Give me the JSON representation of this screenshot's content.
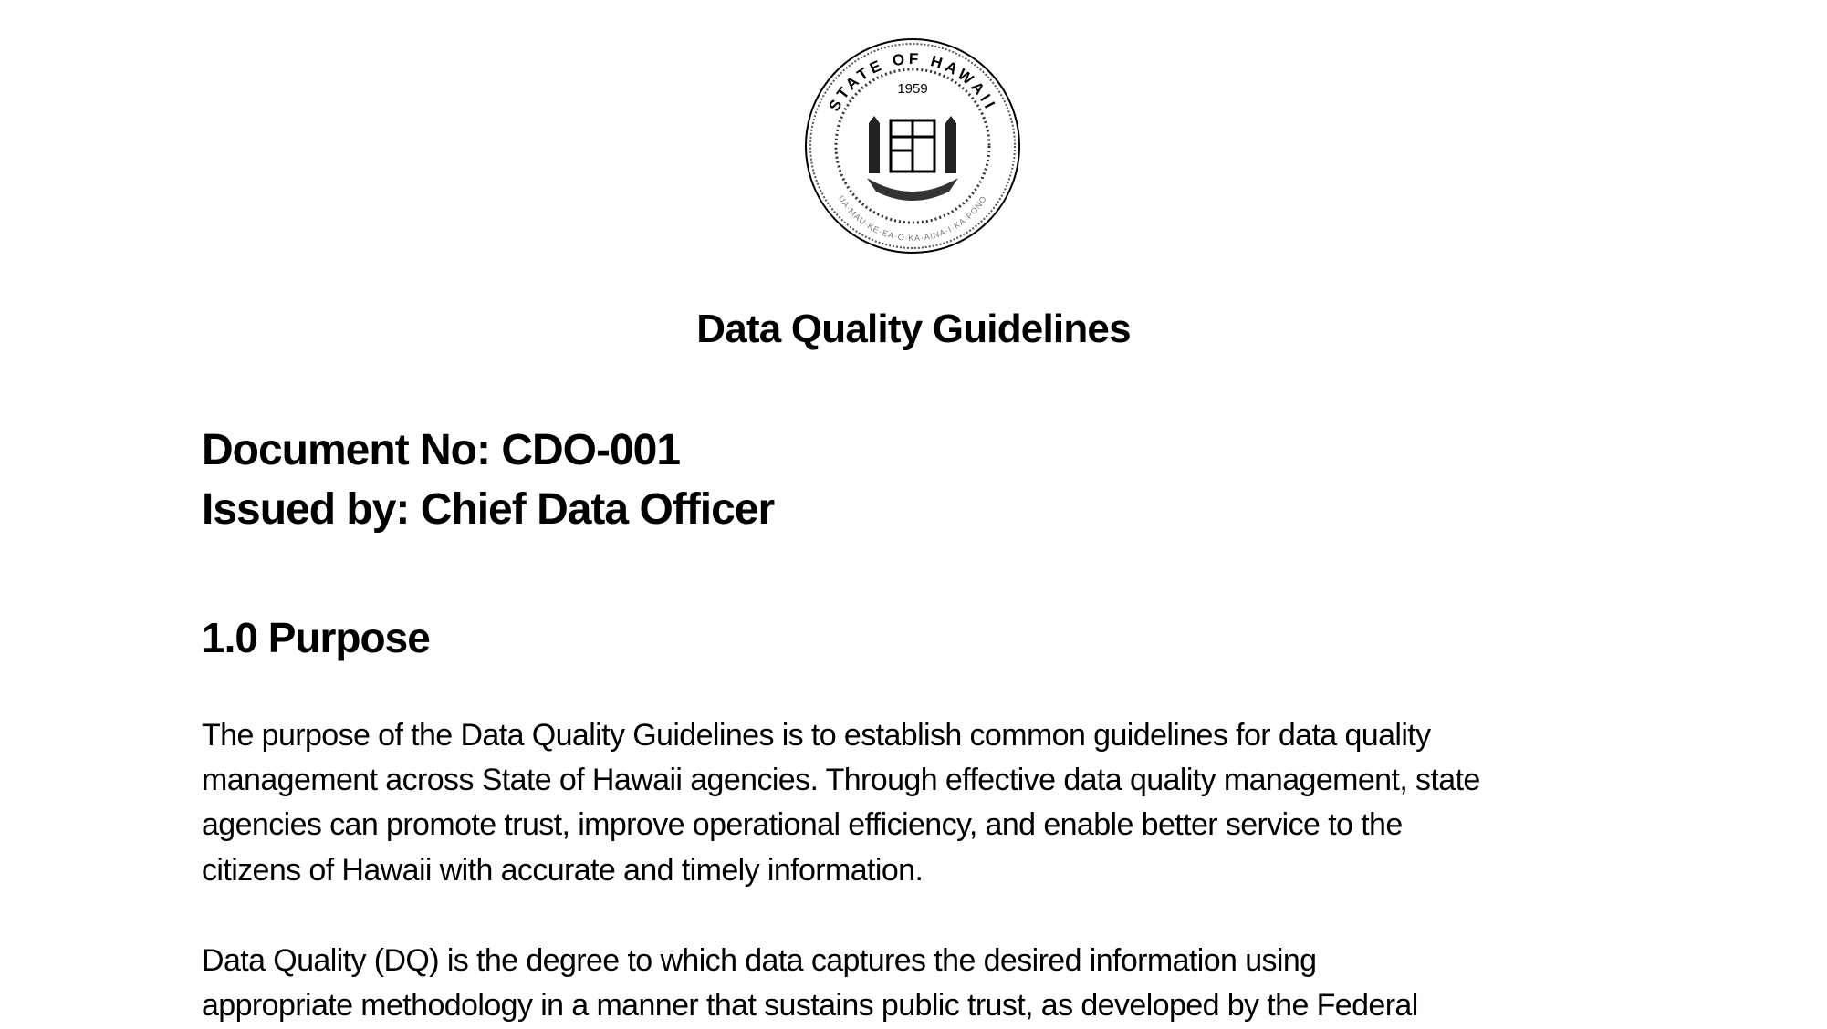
{
  "seal": {
    "text_top": "STATE OF HAWAII",
    "year": "1959",
    "motto": "UA MAU KE EA O KA AINA I KA PONO"
  },
  "title": "Data Quality Guidelines",
  "document_no": "Document No: CDO-001",
  "issued_by": "Issued by: Chief Data Officer",
  "section": {
    "heading": "1.0 Purpose"
  },
  "paragraphs": [
    {
      "lines": [
        "The purpose of the Data Quality Guidelines is to establish common guidelines for data quality",
        "management across State of Hawaii agencies. Through effective data quality management, state",
        "agencies can promote trust, improve operational efficiency, and enable better service to the",
        "citizens of Hawaii with accurate and timely information."
      ]
    },
    {
      "lines": [
        "Data Quality (DQ) is the degree to which data captures the desired information using",
        "appropriate methodology in a manner that sustains public trust, as developed by the Federal"
      ]
    }
  ]
}
